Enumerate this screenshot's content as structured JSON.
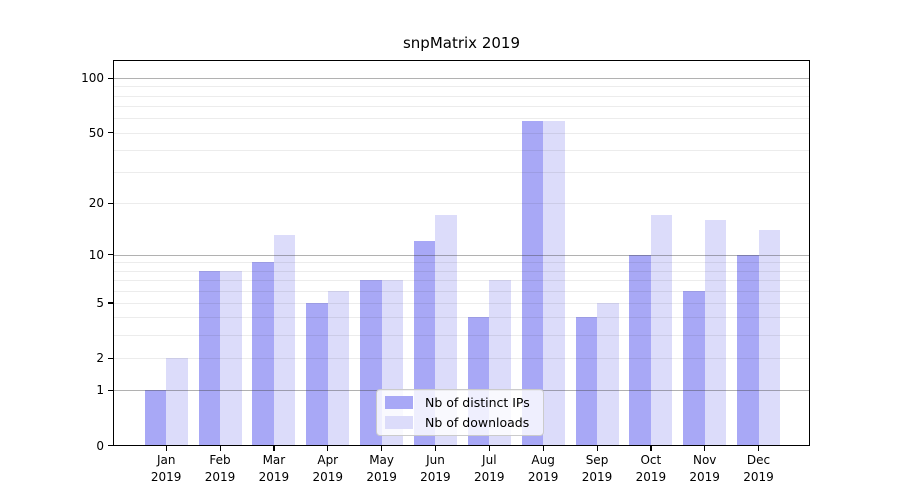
{
  "chart_data": {
    "type": "bar",
    "title": "snpMatrix 2019",
    "categories": [
      "Jan",
      "Feb",
      "Mar",
      "Apr",
      "May",
      "Jun",
      "Jul",
      "Aug",
      "Sep",
      "Oct",
      "Nov",
      "Dec"
    ],
    "x_tick_year": "2019",
    "series": [
      {
        "name": "Nb of distinct IPs",
        "color": "#a8a8f6",
        "values": [
          1,
          8,
          9,
          5,
          7,
          12,
          4,
          58,
          4,
          10,
          6,
          10
        ]
      },
      {
        "name": "Nb of downloads",
        "color": "#dcdcfa",
        "values": [
          2,
          8,
          13,
          6,
          7,
          17,
          7,
          58,
          5,
          17,
          16,
          14
        ]
      }
    ],
    "xlabel": "",
    "ylabel": "",
    "y_axis": {
      "scale": "log1p",
      "tick_values": [
        0,
        1,
        2,
        5,
        10,
        20,
        50,
        100
      ],
      "minor_grid_values": [
        2,
        3,
        4,
        5,
        6,
        7,
        8,
        9,
        20,
        30,
        40,
        50,
        60,
        70,
        80,
        90
      ],
      "major_grid_values": [
        1,
        10,
        100
      ],
      "ylim": [
        0,
        130
      ]
    },
    "grid": "on",
    "legend_position": "bottom-center",
    "background_color": "#ffffff"
  }
}
